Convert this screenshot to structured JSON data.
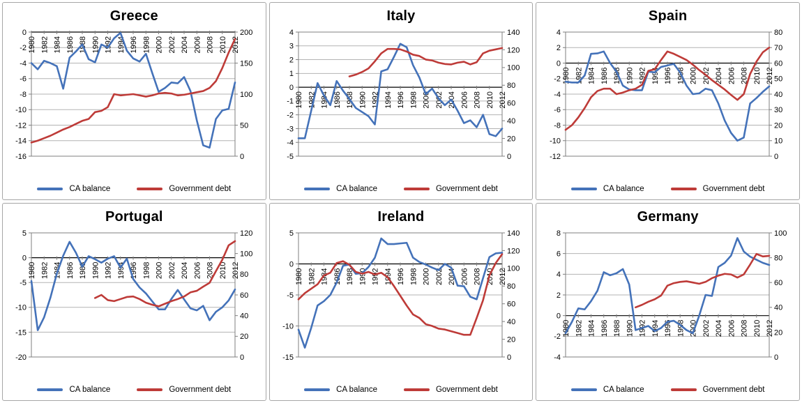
{
  "colors": {
    "ca_balance": "#4472B9",
    "debt": "#BE3B38",
    "grid": "#B3B3B3",
    "axis": "#7F7F7F",
    "zero_line": "#000000",
    "panel_border": "#A6A6A6",
    "text": "#000000"
  },
  "legend": [
    "CA balance",
    "Government debt"
  ],
  "x_axis": {
    "start_year": 1980,
    "end_year": 2012,
    "label_step": 2
  },
  "chart_data": [
    {
      "type": "line",
      "title": "Greece",
      "left_axis": {
        "min": -16,
        "max": 0,
        "step": 2
      },
      "right_axis": {
        "min": 0,
        "max": 200,
        "step": 50
      },
      "series": [
        {
          "name": "CA balance",
          "axis": "left",
          "start_year": 1980,
          "values": [
            -4,
            -4.8,
            -3.7,
            -4,
            -4.4,
            -7.3,
            -3.3,
            -2.5,
            -1.6,
            -3.5,
            -3.9,
            -1.6,
            -2,
            -0.8,
            -0.1,
            -2.4,
            -3.4,
            -3.8,
            -2.8,
            -5.3,
            -7.7,
            -7.2,
            -6.5,
            -6.6,
            -5.8,
            -7.6,
            -11.4,
            -14.6,
            -14.9,
            -11.2,
            -10.1,
            -9.9,
            -6.5
          ]
        },
        {
          "name": "Government debt",
          "axis": "right",
          "start_year": 1980,
          "values": [
            22,
            25,
            29,
            33,
            38,
            43,
            47,
            52,
            57,
            60,
            71,
            73,
            79,
            100,
            98,
            99,
            100,
            98,
            96,
            98,
            101,
            102,
            101,
            98,
            99,
            101,
            103,
            105,
            110,
            121,
            142,
            167,
            189
          ]
        }
      ]
    },
    {
      "type": "line",
      "title": "Italy",
      "left_axis": {
        "min": -5,
        "max": 4,
        "step": 1
      },
      "right_axis": {
        "min": 0,
        "max": 140,
        "step": 20
      },
      "series": [
        {
          "name": "CA balance",
          "axis": "left",
          "start_year": 1980,
          "values": [
            -3.7,
            -3.7,
            -1.7,
            0.3,
            -0.6,
            -1.3,
            0.45,
            -0.25,
            -0.85,
            -1.5,
            -1.8,
            -2.1,
            -2.7,
            1.15,
            1.3,
            2.2,
            3.15,
            2.9,
            1.6,
            0.7,
            -0.5,
            -0.1,
            -0.8,
            -1.3,
            -0.9,
            -1.7,
            -2.6,
            -2.4,
            -2.9,
            -2,
            -3.4,
            -3.55,
            -3
          ]
        },
        {
          "name": "Government debt",
          "axis": "right",
          "start_year": 1988,
          "values": [
            90,
            92,
            95,
            99,
            107,
            116,
            121,
            121,
            120.5,
            118,
            114.5,
            113,
            109,
            108,
            105.5,
            104,
            103.5,
            105.5,
            106.5,
            103.5,
            106,
            116,
            119,
            120.5,
            122
          ]
        }
      ]
    },
    {
      "type": "line",
      "title": "Spain",
      "left_axis": {
        "min": -12,
        "max": 4,
        "step": 2
      },
      "right_axis": {
        "min": 0,
        "max": 80,
        "step": 10
      },
      "series": [
        {
          "name": "CA balance",
          "axis": "left",
          "start_year": 1980,
          "values": [
            -2.4,
            -2.5,
            -2.5,
            -1.6,
            1.2,
            1.25,
            1.5,
            0,
            -1.1,
            -2.9,
            -3.4,
            -3.5,
            -3.5,
            -1.1,
            -1.2,
            -0.5,
            -0.3,
            -0.1,
            -1.2,
            -2.9,
            -4,
            -3.9,
            -3.3,
            -3.5,
            -5.2,
            -7.4,
            -9,
            -10,
            -9.6,
            -5.2,
            -4.5,
            -3.7,
            -3
          ]
        },
        {
          "name": "Government debt",
          "axis": "right",
          "start_year": 1980,
          "values": [
            17,
            20,
            25,
            31,
            38,
            42,
            43.5,
            43.5,
            40,
            41,
            42.5,
            43.5,
            46,
            55,
            56,
            62,
            67.5,
            66,
            64,
            62,
            59,
            55.5,
            52.5,
            49,
            46,
            43,
            39.5,
            36.3,
            40,
            53,
            61,
            67,
            70
          ]
        }
      ]
    },
    {
      "type": "line",
      "title": "Portugal",
      "left_axis": {
        "min": -20,
        "max": 5,
        "step": 5
      },
      "right_axis": {
        "min": 0,
        "max": 120,
        "step": 20
      },
      "series": [
        {
          "name": "CA balance",
          "axis": "left",
          "start_year": 1980,
          "values": [
            -4.7,
            -14.6,
            -12,
            -8,
            -3.2,
            0.4,
            3.2,
            1,
            -1.8,
            0.3,
            -0.3,
            -1,
            -0.2,
            0.3,
            -2,
            -0.2,
            -4.3,
            -6,
            -7.2,
            -8.8,
            -10.4,
            -10.4,
            -8.3,
            -6.5,
            -8.4,
            -10.2,
            -10.6,
            -9.7,
            -12.6,
            -10.9,
            -10,
            -8.6,
            -6.4
          ]
        },
        {
          "name": "Government debt",
          "axis": "right",
          "start_year": 1990,
          "values": [
            57,
            60,
            55,
            54,
            56,
            58,
            58.5,
            56,
            52.5,
            50.5,
            49,
            51.5,
            54,
            56,
            58.5,
            62.5,
            64,
            68,
            71.7,
            83,
            94,
            108,
            112
          ]
        }
      ]
    },
    {
      "type": "line",
      "title": "Ireland",
      "left_axis": {
        "min": -15,
        "max": 5,
        "step": 5
      },
      "right_axis": {
        "min": 0,
        "max": 140,
        "step": 20
      },
      "series": [
        {
          "name": "CA balance",
          "axis": "left",
          "start_year": 1980,
          "values": [
            -10.6,
            -13.5,
            -10.3,
            -6.7,
            -6,
            -5,
            -3,
            -0.3,
            -0.1,
            -1.6,
            -1.5,
            -0.5,
            1,
            4.1,
            3.2,
            3.2,
            3.3,
            3.4,
            1,
            0.3,
            -0.1,
            -0.6,
            -1,
            0,
            -0.6,
            -3.5,
            -3.6,
            -5.3,
            -5.7,
            -2.3,
            1.1,
            1.7,
            1.8
          ]
        },
        {
          "name": "Government debt",
          "axis": "right",
          "start_year": 1980,
          "values": [
            65,
            72,
            77,
            82,
            92,
            95,
            106,
            108,
            104,
            96,
            94,
            96,
            93,
            95,
            90,
            80,
            69,
            58,
            48,
            44,
            37,
            35,
            32,
            31,
            29,
            27,
            25,
            25,
            44,
            64,
            92,
            106,
            116
          ]
        }
      ]
    },
    {
      "type": "line",
      "title": "Germany",
      "left_axis": {
        "min": -4,
        "max": 8,
        "step": 2
      },
      "right_axis": {
        "min": 0,
        "max": 100,
        "step": 20
      },
      "series": [
        {
          "name": "CA balance",
          "axis": "left",
          "start_year": 1980,
          "values": [
            -1.7,
            -0.6,
            0.7,
            0.6,
            1.4,
            2.4,
            4.2,
            3.9,
            4.1,
            4.5,
            3,
            -1.4,
            -1.2,
            -1,
            -1.5,
            -1.2,
            -0.6,
            -0.5,
            -0.9,
            -1.4,
            -1.7,
            0,
            2,
            1.9,
            4.7,
            5.1,
            5.8,
            7.5,
            6.2,
            5.7,
            5.4,
            5.1,
            4.9
          ]
        },
        {
          "name": "Government debt",
          "axis": "right",
          "start_year": 1991,
          "values": [
            40,
            42,
            44.5,
            46.5,
            49.5,
            57.5,
            59.5,
            60.5,
            61,
            60,
            59,
            60.5,
            63.5,
            65.5,
            67,
            66.5,
            64,
            66.5,
            74.5,
            83,
            81,
            81.5
          ]
        }
      ]
    }
  ]
}
